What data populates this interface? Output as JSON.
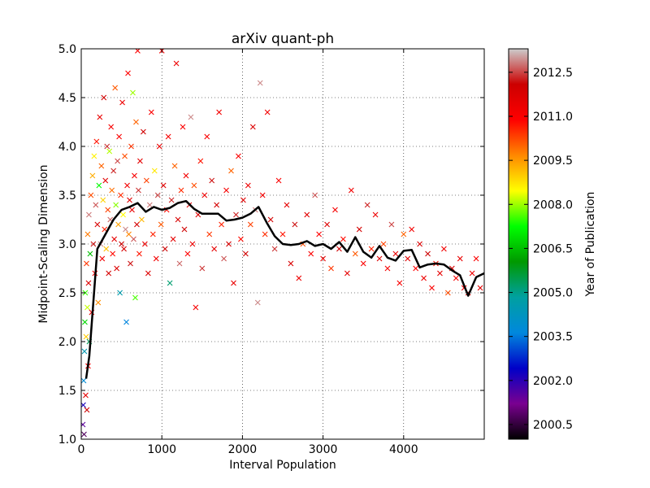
{
  "chart_data": {
    "type": "scatter",
    "title": "arXiv quant-ph",
    "xlabel": "Interval Population",
    "ylabel": "Midpoint-Scaling Dimension",
    "xlim": [
      0,
      5000
    ],
    "ylim": [
      1.0,
      5.0
    ],
    "xticks": [
      0,
      1000,
      2000,
      3000,
      4000
    ],
    "xtick_labels": [
      "0",
      "1000",
      "2000",
      "3000",
      "4000"
    ],
    "yticks": [
      1.0,
      1.5,
      2.0,
      2.5,
      3.0,
      3.5,
      4.0,
      4.5,
      5.0
    ],
    "ytick_labels": [
      "1.0",
      "1.5",
      "2.0",
      "2.5",
      "3.0",
      "3.5",
      "4.0",
      "4.5",
      "5.0"
    ],
    "grid": true,
    "marker": "x",
    "colorbar": {
      "label": "Year of Publication",
      "range": [
        2000.0,
        2013.3
      ],
      "ticks": [
        2000.5,
        2002.0,
        2003.5,
        2005.0,
        2006.5,
        2008.0,
        2009.5,
        2011.0,
        2012.5
      ],
      "tick_labels": [
        "2000.5",
        "2002.0",
        "2003.5",
        "2005.0",
        "2006.5",
        "2008.0",
        "2009.5",
        "2011.0",
        "2012.5"
      ],
      "colormap": [
        "#000000",
        "#7a0090",
        "#0000c8",
        "#0088dd",
        "#00a0a0",
        "#009900",
        "#00ff00",
        "#ffff00",
        "#ff8800",
        "#ff0000",
        "#cc0000",
        "#cccccc"
      ]
    },
    "series": [
      {
        "name": "scatter-points",
        "points": [
          [
            20,
            1.15,
            2001.5
          ],
          [
            25,
            1.35,
            2002.2
          ],
          [
            30,
            1.6,
            2003.8
          ],
          [
            35,
            1.05,
            2000.8
          ],
          [
            40,
            1.9,
            2004.5
          ],
          [
            45,
            2.2,
            2006.8
          ],
          [
            50,
            2.5,
            2007.5
          ],
          [
            55,
            1.45,
            2011.5
          ],
          [
            60,
            2.05,
            2009.0
          ],
          [
            65,
            2.8,
            2010.4
          ],
          [
            70,
            1.3,
            2012.1
          ],
          [
            75,
            2.35,
            2008.2
          ],
          [
            80,
            3.1,
            2009.8
          ],
          [
            85,
            1.75,
            2010.9
          ],
          [
            90,
            2.6,
            2011.7
          ],
          [
            95,
            3.3,
            2012.8
          ],
          [
            100,
            2.0,
            2005.4
          ],
          [
            110,
            2.9,
            2006.5
          ],
          [
            120,
            3.5,
            2010.2
          ],
          [
            130,
            2.3,
            2011.3
          ],
          [
            140,
            3.7,
            2009.3
          ],
          [
            150,
            3.0,
            2012.2
          ],
          [
            160,
            3.9,
            2008.6
          ],
          [
            170,
            2.7,
            2011.0
          ],
          [
            180,
            3.4,
            2012.6
          ],
          [
            190,
            4.05,
            2010.7
          ],
          [
            200,
            3.2,
            2011.8
          ],
          [
            210,
            2.4,
            2009.6
          ],
          [
            220,
            3.6,
            2007.2
          ],
          [
            230,
            4.3,
            2011.4
          ],
          [
            240,
            3.0,
            2012.9
          ],
          [
            250,
            3.8,
            2010.0
          ],
          [
            260,
            2.85,
            2011.2
          ],
          [
            270,
            3.45,
            2008.9
          ],
          [
            280,
            4.5,
            2012.0
          ],
          [
            290,
            3.15,
            2010.6
          ],
          [
            300,
            3.65,
            2011.6
          ],
          [
            310,
            2.95,
            2009.1
          ],
          [
            320,
            4.0,
            2012.4
          ],
          [
            330,
            3.35,
            2010.3
          ],
          [
            340,
            2.7,
            2011.9
          ],
          [
            350,
            3.95,
            2008.1
          ],
          [
            360,
            3.25,
            2012.7
          ],
          [
            370,
            4.2,
            2011.1
          ],
          [
            380,
            3.55,
            2009.9
          ],
          [
            390,
            2.9,
            2010.8
          ],
          [
            400,
            3.75,
            2012.3
          ],
          [
            410,
            3.05,
            2011.5
          ],
          [
            420,
            4.6,
            2010.1
          ],
          [
            430,
            3.4,
            2007.9
          ],
          [
            440,
            2.75,
            2011.7
          ],
          [
            450,
            3.85,
            2012.5
          ],
          [
            460,
            3.2,
            2009.4
          ],
          [
            470,
            4.1,
            2011.0
          ],
          [
            480,
            2.5,
            2004.6
          ],
          [
            490,
            3.5,
            2010.5
          ],
          [
            500,
            3.0,
            2012.1
          ],
          [
            510,
            4.45,
            2011.3
          ],
          [
            520,
            3.3,
            2008.5
          ],
          [
            530,
            2.95,
            2011.8
          ],
          [
            540,
            3.9,
            2010.2
          ],
          [
            550,
            3.15,
            2012.9
          ],
          [
            560,
            2.2,
            2003.6
          ],
          [
            570,
            3.6,
            2011.2
          ],
          [
            580,
            4.75,
            2010.9
          ],
          [
            590,
            3.1,
            2009.7
          ],
          [
            600,
            3.45,
            2011.6
          ],
          [
            610,
            2.8,
            2012.2
          ],
          [
            620,
            4.0,
            2010.4
          ],
          [
            630,
            3.35,
            2011.4
          ],
          [
            640,
            4.55,
            2008.0
          ],
          [
            650,
            3.05,
            2012.6
          ],
          [
            660,
            3.7,
            2011.1
          ],
          [
            670,
            2.45,
            2007.6
          ],
          [
            680,
            4.25,
            2010.0
          ],
          [
            690,
            3.2,
            2011.9
          ],
          [
            700,
            4.98,
            2011.0
          ],
          [
            710,
            3.55,
            2012.4
          ],
          [
            720,
            2.9,
            2010.7
          ],
          [
            730,
            3.85,
            2011.5
          ],
          [
            750,
            3.25,
            2009.2
          ],
          [
            770,
            4.15,
            2012.0
          ],
          [
            790,
            3.0,
            2011.3
          ],
          [
            810,
            3.65,
            2010.3
          ],
          [
            830,
            2.7,
            2011.7
          ],
          [
            850,
            3.4,
            2012.8
          ],
          [
            870,
            4.35,
            2011.0
          ],
          [
            890,
            3.1,
            2010.6
          ],
          [
            910,
            3.75,
            2008.7
          ],
          [
            930,
            2.85,
            2011.2
          ],
          [
            950,
            3.5,
            2012.5
          ],
          [
            970,
            4.0,
            2011.4
          ],
          [
            990,
            3.2,
            2010.1
          ],
          [
            1000,
            4.98,
            2011.0
          ],
          [
            1020,
            3.6,
            2011.6
          ],
          [
            1040,
            2.95,
            2012.1
          ],
          [
            1060,
            3.35,
            2010.8
          ],
          [
            1080,
            4.1,
            2011.1
          ],
          [
            1100,
            2.6,
            2005.2
          ],
          [
            1120,
            3.45,
            2012.3
          ],
          [
            1140,
            3.05,
            2011.5
          ],
          [
            1160,
            3.8,
            2010.0
          ],
          [
            1180,
            4.85,
            2011.3
          ],
          [
            1200,
            3.25,
            2011.8
          ],
          [
            1220,
            2.8,
            2012.7
          ],
          [
            1240,
            3.55,
            2010.5
          ],
          [
            1260,
            4.2,
            2011.0
          ],
          [
            1280,
            3.15,
            2012.0
          ],
          [
            1300,
            3.7,
            2011.2
          ],
          [
            1320,
            2.9,
            2010.9
          ],
          [
            1340,
            3.4,
            2011.6
          ],
          [
            1360,
            4.3,
            2012.9
          ],
          [
            1380,
            3.0,
            2011.4
          ],
          [
            1400,
            3.6,
            2010.2
          ],
          [
            1420,
            2.35,
            2011.1
          ],
          [
            1450,
            3.3,
            2011.7
          ],
          [
            1480,
            3.85,
            2010.7
          ],
          [
            1500,
            2.75,
            2012.4
          ],
          [
            1530,
            3.5,
            2011.3
          ],
          [
            1560,
            4.1,
            2011.0
          ],
          [
            1590,
            3.1,
            2010.4
          ],
          [
            1620,
            3.65,
            2012.2
          ],
          [
            1650,
            2.95,
            2011.5
          ],
          [
            1680,
            3.4,
            2011.9
          ],
          [
            1710,
            4.35,
            2011.2
          ],
          [
            1740,
            3.2,
            2010.6
          ],
          [
            1770,
            2.85,
            2012.6
          ],
          [
            1800,
            3.55,
            2011.1
          ],
          [
            1830,
            3.0,
            2011.8
          ],
          [
            1860,
            3.75,
            2010.0
          ],
          [
            1890,
            2.6,
            2011.4
          ],
          [
            1920,
            3.3,
            2012.3
          ],
          [
            1950,
            3.9,
            2011.0
          ],
          [
            1980,
            3.05,
            2010.8
          ],
          [
            2010,
            3.45,
            2011.6
          ],
          [
            2040,
            2.9,
            2012.0
          ],
          [
            2070,
            3.6,
            2011.3
          ],
          [
            2100,
            3.2,
            2010.3
          ],
          [
            2130,
            4.2,
            2011.7
          ],
          [
            2160,
            3.35,
            2012.8
          ],
          [
            2190,
            2.4,
            2012.9
          ],
          [
            2220,
            4.65,
            2012.9
          ],
          [
            2250,
            3.5,
            2011.1
          ],
          [
            2280,
            3.1,
            2010.5
          ],
          [
            2310,
            4.35,
            2011.2
          ],
          [
            2350,
            3.25,
            2011.9
          ],
          [
            2400,
            2.95,
            2012.4
          ],
          [
            2450,
            3.65,
            2011.0
          ],
          [
            2500,
            3.1,
            2010.7
          ],
          [
            2550,
            3.4,
            2011.5
          ],
          [
            2600,
            2.8,
            2011.8
          ],
          [
            2650,
            3.2,
            2012.2
          ],
          [
            2700,
            2.65,
            2011.3
          ],
          [
            2750,
            3.0,
            2010.2
          ],
          [
            2800,
            3.3,
            2011.6
          ],
          [
            2850,
            2.9,
            2011.0
          ],
          [
            2900,
            3.5,
            2012.6
          ],
          [
            2950,
            3.1,
            2010.9
          ],
          [
            3000,
            2.85,
            2011.4
          ],
          [
            3050,
            3.2,
            2011.7
          ],
          [
            3100,
            2.75,
            2010.4
          ],
          [
            3150,
            3.35,
            2011.1
          ],
          [
            3200,
            2.95,
            2012.0
          ],
          [
            3250,
            3.05,
            2010.8
          ],
          [
            3300,
            2.7,
            2011.5
          ],
          [
            3350,
            3.55,
            2011.2
          ],
          [
            3400,
            2.9,
            2010.1
          ],
          [
            3450,
            3.15,
            2011.9
          ],
          [
            3500,
            2.8,
            2011.0
          ],
          [
            3550,
            3.4,
            2012.3
          ],
          [
            3600,
            2.95,
            2010.6
          ],
          [
            3650,
            3.3,
            2011.3
          ],
          [
            3700,
            2.85,
            2011.7
          ],
          [
            3750,
            3.0,
            2010.3
          ],
          [
            3800,
            2.75,
            2011.1
          ],
          [
            3850,
            3.2,
            2012.5
          ],
          [
            3900,
            2.9,
            2011.4
          ],
          [
            3950,
            2.6,
            2011.0
          ],
          [
            4000,
            3.1,
            2010.0
          ],
          [
            4050,
            2.85,
            2011.6
          ],
          [
            4100,
            3.15,
            2011.2
          ],
          [
            4150,
            2.75,
            2010.9
          ],
          [
            4200,
            3.0,
            2011.8
          ],
          [
            4250,
            2.65,
            2011.3
          ],
          [
            4300,
            2.9,
            2012.1
          ],
          [
            4350,
            2.55,
            2011.0
          ],
          [
            4400,
            2.8,
            2010.7
          ],
          [
            4450,
            2.7,
            2011.5
          ],
          [
            4500,
            2.95,
            2011.2
          ],
          [
            4550,
            2.5,
            2010.2
          ],
          [
            4600,
            2.75,
            2011.9
          ],
          [
            4650,
            2.65,
            2011.1
          ],
          [
            4700,
            2.85,
            2011.4
          ],
          [
            4750,
            2.55,
            2011.0
          ],
          [
            4800,
            2.5,
            2011.7
          ],
          [
            4850,
            2.7,
            2011.3
          ],
          [
            4900,
            2.85,
            2011.0
          ],
          [
            4950,
            2.55,
            2011.6
          ]
        ]
      },
      {
        "name": "smoothed-mean-line",
        "color": "#000000",
        "x": [
          60,
          100,
          200,
          300,
          400,
          500,
          600,
          700,
          800,
          900,
          1000,
          1100,
          1200,
          1300,
          1400,
          1500,
          1600,
          1700,
          1800,
          1900,
          2000,
          2100,
          2200,
          2300,
          2400,
          2500,
          2600,
          2700,
          2800,
          2900,
          3000,
          3100,
          3200,
          3300,
          3400,
          3500,
          3600,
          3700,
          3800,
          3900,
          4000,
          4100,
          4200,
          4300,
          4400,
          4500,
          4600,
          4700,
          4800,
          4900,
          5000
        ],
        "y": [
          1.62,
          1.85,
          2.95,
          3.1,
          3.25,
          3.35,
          3.38,
          3.42,
          3.33,
          3.38,
          3.35,
          3.37,
          3.42,
          3.44,
          3.36,
          3.31,
          3.31,
          3.31,
          3.24,
          3.25,
          3.27,
          3.31,
          3.38,
          3.22,
          3.08,
          3.0,
          2.99,
          3.0,
          3.03,
          2.98,
          3.0,
          2.95,
          3.02,
          2.92,
          3.07,
          2.92,
          2.86,
          2.98,
          2.86,
          2.83,
          2.93,
          2.94,
          2.76,
          2.79,
          2.8,
          2.79,
          2.73,
          2.68,
          2.47,
          2.66,
          2.7
        ]
      }
    ]
  }
}
